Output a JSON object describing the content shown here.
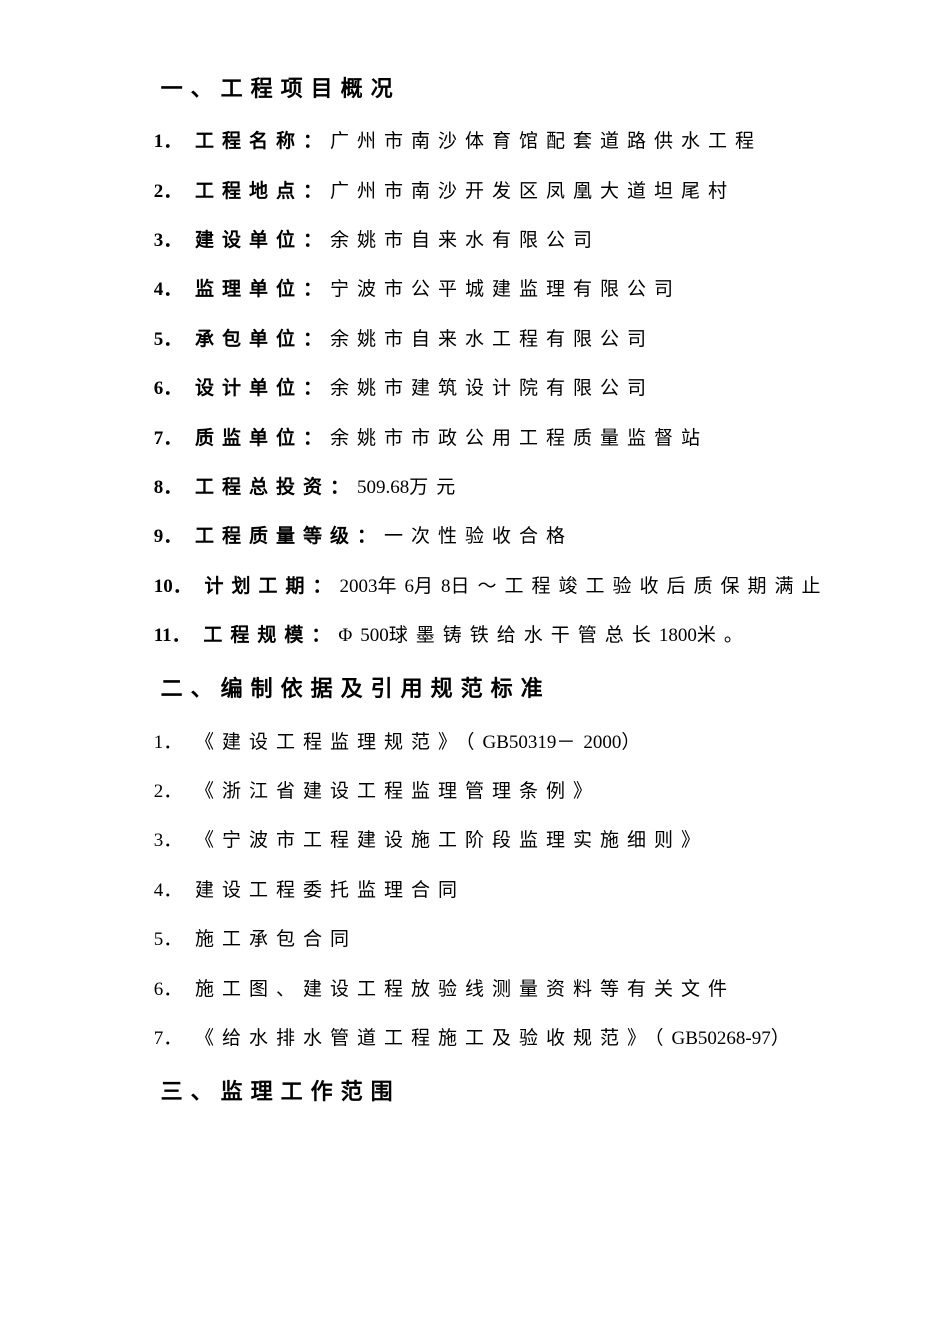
{
  "section1": {
    "heading": "一、工程项目概况",
    "items": [
      {
        "n": "1．",
        "label": "工程名称：",
        "text": "广州市南沙体育馆配套道路供水工程"
      },
      {
        "n": "2．",
        "label": "工程地点：",
        "text": "广州市南沙开发区凤凰大道坦尾村"
      },
      {
        "n": "3．",
        "label": "建设单位：",
        "text": "余姚市自来水有限公司"
      },
      {
        "n": "4．",
        "label": "监理单位：",
        "text": "宁波市公平城建监理有限公司"
      },
      {
        "n": "5．",
        "label": "承包单位：",
        "text": "余姚市自来水工程有限公司"
      },
      {
        "n": "6．",
        "label": "设计单位：",
        "text": "余姚市建筑设计院有限公司"
      },
      {
        "n": "7．",
        "label": "质监单位：",
        "text": "余姚市市政公用工程质量监督站"
      },
      {
        "n": "8．",
        "label": "工程总投资：",
        "num": "509.68",
        "text": "万元"
      },
      {
        "n": "9．",
        "label": "工程质量等级：",
        "text": "一次性验收合格"
      },
      {
        "n": "10．",
        "label": "计划工期：",
        "num": "2003",
        "text1": "年",
        "num2": "6",
        "text2": "月",
        "num3": "8",
        "text3": "日～工程竣工验收后质保期满止"
      },
      {
        "n": "11．",
        "label": "工程规模：",
        "pre": "Φ",
        "num": "500",
        "text": "球墨铸铁给水干管总长",
        "num2": "1800",
        "text2": "米。"
      }
    ]
  },
  "section2": {
    "heading": "二、编制依据及引用规范标准",
    "items": [
      {
        "n": "1．",
        "text": "《建设工程监理规范》（",
        "num": "GB50319",
        "text2": "－",
        "num2": "2000",
        "text3": "）"
      },
      {
        "n": "2．",
        "text": "《浙江省建设工程监理管理条例》"
      },
      {
        "n": "3．",
        "text": "《宁波市工程建设施工阶段监理实施细则》"
      },
      {
        "n": "4．",
        "text": "建设工程委托监理合同"
      },
      {
        "n": "5．",
        "text": "施工承包合同"
      },
      {
        "n": "6．",
        "text": "施工图、建设工程放验线测量资料等有关文件"
      },
      {
        "n": "7．",
        "text": "《给水排水管道工程施工及验收规范》（",
        "num": "GB50268-97",
        "text2": "）"
      }
    ]
  },
  "section3": {
    "heading": "三、监理工作范围"
  }
}
